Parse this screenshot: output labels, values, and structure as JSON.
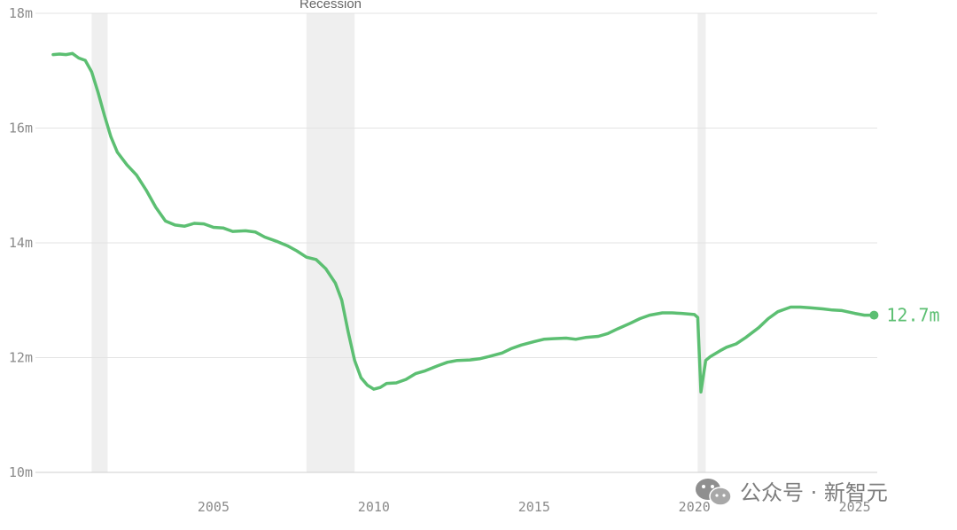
{
  "chart_data": {
    "type": "line",
    "title": "",
    "xlabel": "",
    "ylabel": "",
    "xlim": [
      2000.0,
      2025.7
    ],
    "ylim": [
      10,
      18
    ],
    "y_ticks": [
      {
        "value": 10,
        "label": "10m"
      },
      {
        "value": 12,
        "label": "12m"
      },
      {
        "value": 14,
        "label": "14m"
      },
      {
        "value": 16,
        "label": "16m"
      },
      {
        "value": 18,
        "label": "18m"
      }
    ],
    "x_ticks": [
      {
        "value": 2005,
        "label": "2005"
      },
      {
        "value": 2010,
        "label": "2010"
      },
      {
        "value": 2015,
        "label": "2015"
      },
      {
        "value": 2020,
        "label": "2020"
      },
      {
        "value": 2025,
        "label": "2025"
      }
    ],
    "grid": "horizontal",
    "line_color": "#5cbf72",
    "recession_color": "#efefef",
    "recession_label": "Recession",
    "recessions": [
      {
        "start": 2001.2,
        "end": 2001.7
      },
      {
        "start": 2007.9,
        "end": 2009.4
      },
      {
        "start": 2020.1,
        "end": 2020.35
      }
    ],
    "end_label": "12.7m",
    "series": [
      {
        "x": [
          2000.0,
          2000.2,
          2000.4,
          2000.6,
          2000.8,
          2001.0,
          2001.2,
          2001.4,
          2001.6,
          2001.8,
          2002.0,
          2002.3,
          2002.6,
          2002.9,
          2003.2,
          2003.5,
          2003.8,
          2004.1,
          2004.4,
          2004.7,
          2005.0,
          2005.3,
          2005.6,
          2006.0,
          2006.3,
          2006.6,
          2007.0,
          2007.3,
          2007.6,
          2007.9,
          2008.2,
          2008.5,
          2008.8,
          2009.0,
          2009.2,
          2009.4,
          2009.6,
          2009.8,
          2010.0,
          2010.2,
          2010.4,
          2010.7,
          2011.0,
          2011.3,
          2011.6,
          2012.0,
          2012.3,
          2012.6,
          2013.0,
          2013.3,
          2013.6,
          2014.0,
          2014.3,
          2014.6,
          2015.0,
          2015.3,
          2015.6,
          2016.0,
          2016.3,
          2016.6,
          2017.0,
          2017.3,
          2017.6,
          2018.0,
          2018.3,
          2018.6,
          2019.0,
          2019.3,
          2019.6,
          2020.0,
          2020.1,
          2020.2,
          2020.35,
          2020.5,
          2020.8,
          2021.0,
          2021.3,
          2021.6,
          2022.0,
          2022.3,
          2022.6,
          2023.0,
          2023.3,
          2023.6,
          2024.0,
          2024.3,
          2024.6,
          2025.0,
          2025.3,
          2025.6
        ],
        "y": [
          17.28,
          17.29,
          17.28,
          17.3,
          17.22,
          17.18,
          16.98,
          16.62,
          16.22,
          15.85,
          15.58,
          15.36,
          15.18,
          14.92,
          14.62,
          14.38,
          14.31,
          14.29,
          14.34,
          14.33,
          14.27,
          14.26,
          14.2,
          14.21,
          14.19,
          14.1,
          14.02,
          13.95,
          13.86,
          13.75,
          13.71,
          13.55,
          13.3,
          13.0,
          12.45,
          11.95,
          11.65,
          11.52,
          11.45,
          11.48,
          11.55,
          11.56,
          11.62,
          11.72,
          11.77,
          11.86,
          11.92,
          11.95,
          11.96,
          11.98,
          12.02,
          12.08,
          12.16,
          12.22,
          12.28,
          12.32,
          12.33,
          12.34,
          12.32,
          12.35,
          12.37,
          12.42,
          12.5,
          12.6,
          12.68,
          12.74,
          12.78,
          12.78,
          12.77,
          12.75,
          12.7,
          11.4,
          11.95,
          12.02,
          12.12,
          12.18,
          12.24,
          12.35,
          12.52,
          12.68,
          12.8,
          12.88,
          12.88,
          12.87,
          12.85,
          12.83,
          12.82,
          12.77,
          12.74,
          12.74
        ]
      }
    ]
  },
  "watermark": {
    "text": "公众号 · 新智元",
    "icon": "wechat-icon"
  }
}
